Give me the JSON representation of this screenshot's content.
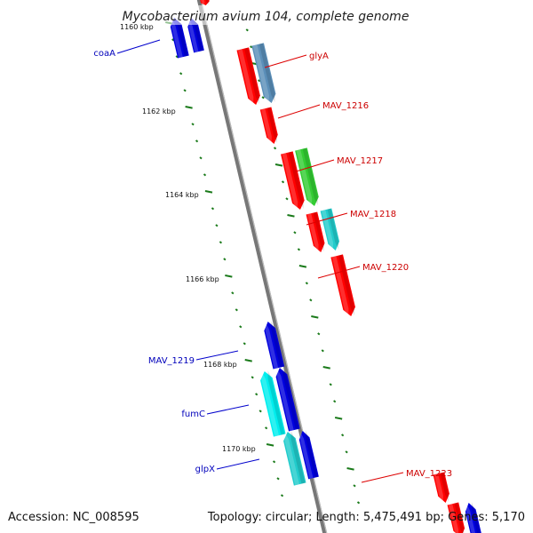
{
  "title": "Mycobacterium avium 104, complete genome",
  "footer": {
    "accession": "Accession: NC_008595",
    "summary": "Topology: circular; Length: 5,475,491 bp; Genes: 5,170"
  },
  "kbp_ticks": [
    "1160 kbp",
    "1162 kbp",
    "1164 kbp",
    "1166 kbp",
    "1168 kbp",
    "1170 kbp"
  ],
  "colors": {
    "forward_cds": "#ff0000",
    "reverse_cds": "#0000dd",
    "forward_label": "#cc0000",
    "reverse_label": "#0000bb",
    "steelblue_feature": "#5b8fb9",
    "green_feature": "#33cc33",
    "cyan_feature": "#22cccc",
    "backbone": "#888888",
    "ticks": "#1a7a1a"
  },
  "forward_labels": [
    {
      "text": "glyA",
      "color": "#cc0000"
    },
    {
      "text": "MAV_1216",
      "color": "#cc0000"
    },
    {
      "text": "MAV_1217",
      "color": "#cc0000"
    },
    {
      "text": "MAV_1218",
      "color": "#cc0000"
    },
    {
      "text": "MAV_1220",
      "color": "#cc0000"
    },
    {
      "text": "MAV_1223",
      "color": "#cc0000"
    }
  ],
  "reverse_labels": [
    {
      "text": "coaA",
      "color": "#0000bb"
    },
    {
      "text": "MAV_1219",
      "color": "#0000bb"
    },
    {
      "text": "fumC",
      "color": "#0000bb"
    },
    {
      "text": "glpX",
      "color": "#0000bb"
    }
  ]
}
